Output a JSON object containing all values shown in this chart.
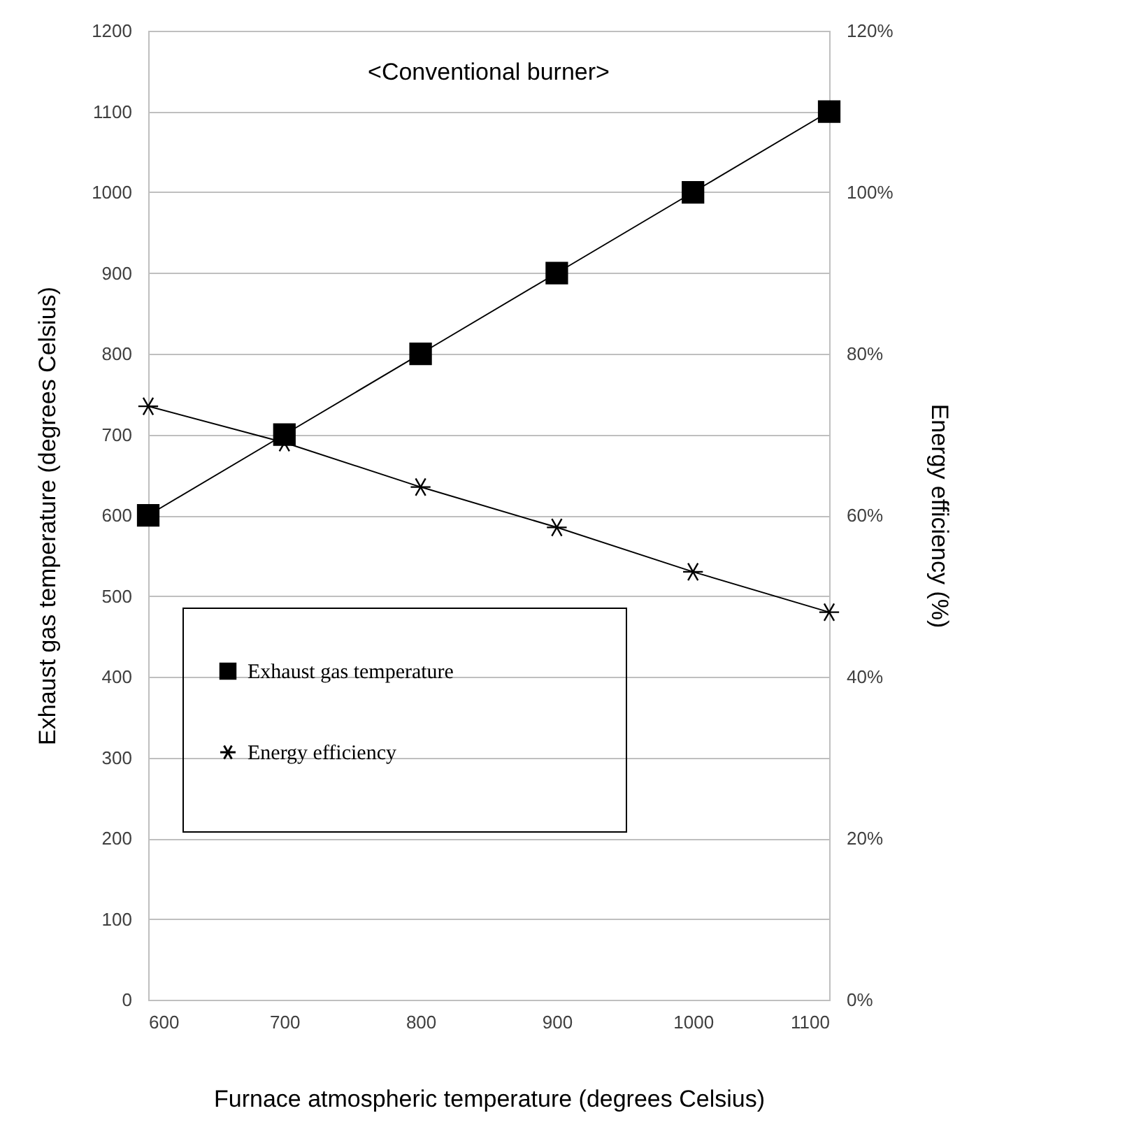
{
  "chart_data": {
    "type": "line",
    "annotations": [
      "<Conventional burner>"
    ],
    "xlabel": "Furnace atmospheric temperature (degrees Celsius)",
    "ylabel": "Exhaust gas temperature (degrees Celsius)",
    "y2label": "Energy efficiency (%)",
    "x": [
      600,
      700,
      800,
      900,
      1000,
      1100
    ],
    "series": [
      {
        "name": "Exhaust gas temperature",
        "color": "#000000",
        "marker": "square",
        "values": [
          600,
          700,
          800,
          900,
          1000,
          1100
        ]
      },
      {
        "name": "Energy efficiency",
        "color": "#000000",
        "marker": "cross",
        "axis": "y2",
        "values": [
          73.5,
          69,
          63.5,
          58.5,
          53,
          48
        ]
      }
    ],
    "xlim": [
      600,
      1100
    ],
    "xticks": [
      600,
      700,
      800,
      900,
      1000,
      1100
    ],
    "ylim": [
      0,
      1200
    ],
    "yticks": [
      0,
      100,
      200,
      300,
      400,
      500,
      600,
      700,
      800,
      900,
      1000,
      1100,
      1200
    ],
    "y2lim": [
      0,
      120
    ],
    "y2ticks": [
      {
        "value": 0,
        "label": "0%"
      },
      {
        "value": 20,
        "label": "20%"
      },
      {
        "value": 40,
        "label": "40%"
      },
      {
        "value": 60,
        "label": "60%"
      },
      {
        "value": 80,
        "label": "80%"
      },
      {
        "value": 100,
        "label": "100%"
      },
      {
        "value": 120,
        "label": "120%"
      }
    ],
    "grid": "y",
    "legend": "bottom left",
    "line_style": "solid"
  }
}
